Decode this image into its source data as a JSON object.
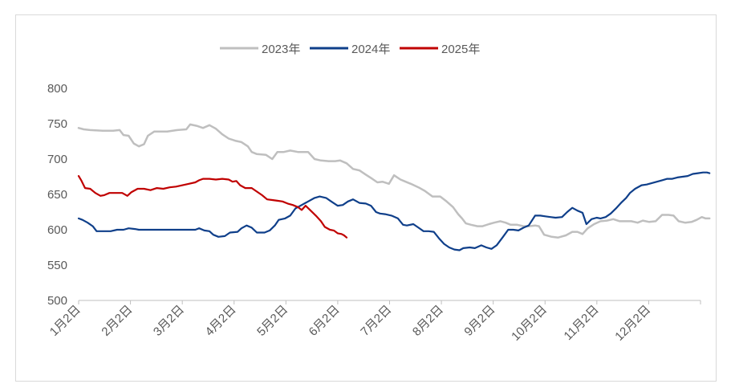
{
  "chart_data": {
    "type": "line",
    "title": "",
    "xlabel": "",
    "ylabel": "",
    "ylim": [
      500,
      800
    ],
    "yticks": [
      "500",
      "550",
      "600",
      "650",
      "700",
      "750",
      "800"
    ],
    "x_tick_labels": [
      "1月2日",
      "2月2日",
      "3月2日",
      "4月2日",
      "5月2日",
      "6月2日",
      "7月2日",
      "8月2日",
      "9月2日",
      "10月2日",
      "11月2日",
      "12月2日"
    ],
    "x_unit": "day of year (1 = 1月2日)",
    "grid": false,
    "legend_position": "top",
    "series": [
      {
        "name": "2023年",
        "color": "#bfbfbf",
        "points": [
          [
            1,
            744
          ],
          [
            5,
            742
          ],
          [
            10,
            741
          ],
          [
            20,
            740
          ],
          [
            28,
            740
          ],
          [
            33,
            741
          ],
          [
            36,
            734
          ],
          [
            40,
            733
          ],
          [
            44,
            722
          ],
          [
            48,
            718
          ],
          [
            52,
            721
          ],
          [
            55,
            733
          ],
          [
            60,
            739
          ],
          [
            70,
            739
          ],
          [
            78,
            741
          ],
          [
            85,
            742
          ],
          [
            88,
            749
          ],
          [
            93,
            747
          ],
          [
            98,
            744
          ],
          [
            103,
            748
          ],
          [
            108,
            743
          ],
          [
            113,
            735
          ],
          [
            118,
            729
          ],
          [
            123,
            726
          ],
          [
            128,
            724
          ],
          [
            133,
            718
          ],
          [
            136,
            710
          ],
          [
            140,
            707
          ],
          [
            147,
            706
          ],
          [
            152,
            700
          ],
          [
            156,
            710
          ],
          [
            161,
            710
          ],
          [
            166,
            712
          ],
          [
            172,
            710
          ],
          [
            180,
            710
          ],
          [
            185,
            700
          ],
          [
            190,
            698
          ],
          [
            196,
            697
          ],
          [
            201,
            697
          ],
          [
            205,
            698
          ],
          [
            210,
            694
          ],
          [
            215,
            686
          ],
          [
            220,
            684
          ],
          [
            225,
            678
          ],
          [
            230,
            672
          ],
          [
            234,
            667
          ],
          [
            238,
            668
          ],
          [
            243,
            665
          ],
          [
            247,
            677
          ],
          [
            252,
            671
          ],
          [
            256,
            668
          ],
          [
            260,
            665
          ],
          [
            266,
            660
          ],
          [
            271,
            655
          ],
          [
            277,
            647
          ],
          [
            283,
            647
          ],
          [
            288,
            640
          ],
          [
            293,
            632
          ],
          [
            297,
            622
          ],
          [
            300,
            616
          ],
          [
            303,
            609
          ],
          [
            307,
            607
          ],
          [
            312,
            605
          ],
          [
            316,
            605
          ],
          [
            321,
            608
          ],
          [
            325,
            610
          ],
          [
            330,
            612
          ],
          [
            334,
            610
          ],
          [
            338,
            607
          ],
          [
            343,
            607
          ],
          [
            348,
            605
          ],
          [
            352,
            605
          ],
          [
            357,
            606
          ],
          [
            360,
            605
          ],
          [
            364,
            593
          ],
          [
            370,
            590
          ],
          [
            375,
            589
          ],
          [
            381,
            592
          ],
          [
            386,
            597
          ],
          [
            390,
            597
          ],
          [
            394,
            594
          ],
          [
            398,
            602
          ],
          [
            403,
            608
          ],
          [
            408,
            612
          ],
          [
            413,
            613
          ],
          [
            418,
            615
          ],
          [
            423,
            612
          ],
          [
            427,
            612
          ],
          [
            432,
            612
          ],
          [
            437,
            610
          ],
          [
            441,
            613
          ],
          [
            446,
            611
          ],
          [
            451,
            612
          ],
          [
            456,
            621
          ],
          [
            461,
            621
          ],
          [
            465,
            620
          ],
          [
            469,
            612
          ],
          [
            474,
            610
          ],
          [
            479,
            611
          ],
          [
            483,
            614
          ],
          [
            487,
            618
          ],
          [
            490,
            616
          ],
          [
            493,
            616
          ]
        ]
      },
      {
        "name": "2024年",
        "color": "#0f3f8a",
        "points": [
          [
            1,
            616
          ],
          [
            4,
            614
          ],
          [
            8,
            610
          ],
          [
            12,
            605
          ],
          [
            15,
            598
          ],
          [
            20,
            598
          ],
          [
            26,
            598
          ],
          [
            31,
            600
          ],
          [
            36,
            600
          ],
          [
            40,
            602
          ],
          [
            45,
            601
          ],
          [
            48,
            600
          ],
          [
            55,
            600
          ],
          [
            62,
            600
          ],
          [
            68,
            600
          ],
          [
            72,
            600
          ],
          [
            78,
            600
          ],
          [
            83,
            600
          ],
          [
            87,
            600
          ],
          [
            92,
            600
          ],
          [
            95,
            602
          ],
          [
            99,
            599
          ],
          [
            103,
            598
          ],
          [
            106,
            593
          ],
          [
            110,
            590
          ],
          [
            115,
            591
          ],
          [
            119,
            596
          ],
          [
            125,
            597
          ],
          [
            128,
            602
          ],
          [
            132,
            606
          ],
          [
            136,
            603
          ],
          [
            140,
            596
          ],
          [
            146,
            596
          ],
          [
            150,
            599
          ],
          [
            154,
            606
          ],
          [
            157,
            614
          ],
          [
            162,
            616
          ],
          [
            166,
            620
          ],
          [
            170,
            630
          ],
          [
            175,
            635
          ],
          [
            180,
            640
          ],
          [
            185,
            645
          ],
          [
            189,
            647
          ],
          [
            194,
            645
          ],
          [
            198,
            640
          ],
          [
            203,
            634
          ],
          [
            207,
            635
          ],
          [
            211,
            640
          ],
          [
            215,
            643
          ],
          [
            220,
            638
          ],
          [
            225,
            637
          ],
          [
            229,
            634
          ],
          [
            233,
            625
          ],
          [
            236,
            623
          ],
          [
            240,
            622
          ],
          [
            245,
            620
          ],
          [
            250,
            616
          ],
          [
            254,
            607
          ],
          [
            257,
            606
          ],
          [
            262,
            608
          ],
          [
            266,
            603
          ],
          [
            270,
            598
          ],
          [
            274,
            598
          ],
          [
            278,
            597
          ],
          [
            282,
            588
          ],
          [
            286,
            580
          ],
          [
            290,
            575
          ],
          [
            294,
            572
          ],
          [
            298,
            571
          ],
          [
            301,
            574
          ],
          [
            306,
            575
          ],
          [
            310,
            574
          ],
          [
            315,
            578
          ],
          [
            319,
            575
          ],
          [
            323,
            573
          ],
          [
            327,
            578
          ],
          [
            332,
            590
          ],
          [
            336,
            600
          ],
          [
            340,
            600
          ],
          [
            344,
            599
          ],
          [
            348,
            603
          ],
          [
            352,
            606
          ],
          [
            357,
            620
          ],
          [
            361,
            620
          ],
          [
            365,
            619
          ],
          [
            369,
            618
          ],
          [
            373,
            617
          ],
          [
            378,
            618
          ],
          [
            382,
            625
          ],
          [
            386,
            631
          ],
          [
            390,
            627
          ],
          [
            394,
            624
          ],
          [
            397,
            608
          ],
          [
            401,
            615
          ],
          [
            405,
            617
          ],
          [
            408,
            616
          ],
          [
            412,
            618
          ],
          [
            416,
            623
          ],
          [
            420,
            630
          ],
          [
            424,
            638
          ],
          [
            428,
            645
          ],
          [
            431,
            652
          ],
          [
            435,
            658
          ],
          [
            440,
            663
          ],
          [
            444,
            664
          ],
          [
            448,
            666
          ],
          [
            452,
            668
          ],
          [
            456,
            670
          ],
          [
            460,
            672
          ],
          [
            464,
            672
          ],
          [
            468,
            674
          ],
          [
            472,
            675
          ],
          [
            476,
            676
          ],
          [
            480,
            679
          ],
          [
            484,
            680
          ],
          [
            488,
            681
          ],
          [
            491,
            681
          ],
          [
            493,
            680
          ]
        ]
      },
      {
        "name": "2025年",
        "color": "#c00000",
        "points": [
          [
            1,
            676
          ],
          [
            3,
            670
          ],
          [
            6,
            659
          ],
          [
            10,
            658
          ],
          [
            14,
            652
          ],
          [
            18,
            648
          ],
          [
            21,
            649
          ],
          [
            25,
            652
          ],
          [
            30,
            652
          ],
          [
            35,
            652
          ],
          [
            39,
            648
          ],
          [
            42,
            653
          ],
          [
            47,
            658
          ],
          [
            52,
            658
          ],
          [
            57,
            656
          ],
          [
            62,
            659
          ],
          [
            67,
            658
          ],
          [
            72,
            660
          ],
          [
            77,
            661
          ],
          [
            82,
            663
          ],
          [
            87,
            665
          ],
          [
            92,
            667
          ],
          [
            95,
            670
          ],
          [
            98,
            672
          ],
          [
            103,
            672
          ],
          [
            108,
            671
          ],
          [
            113,
            672
          ],
          [
            118,
            671
          ],
          [
            121,
            668
          ],
          [
            124,
            669
          ],
          [
            127,
            663
          ],
          [
            131,
            659
          ],
          [
            136,
            659
          ],
          [
            140,
            654
          ],
          [
            144,
            649
          ],
          [
            148,
            643
          ],
          [
            152,
            642
          ],
          [
            156,
            641
          ],
          [
            160,
            640
          ],
          [
            164,
            637
          ],
          [
            168,
            635
          ],
          [
            172,
            632
          ],
          [
            175,
            628
          ],
          [
            178,
            634
          ],
          [
            182,
            627
          ],
          [
            186,
            620
          ],
          [
            190,
            612
          ],
          [
            193,
            604
          ],
          [
            197,
            600
          ],
          [
            200,
            599
          ],
          [
            203,
            595
          ],
          [
            206,
            594
          ],
          [
            208,
            592
          ],
          [
            210,
            589
          ]
        ]
      }
    ]
  }
}
